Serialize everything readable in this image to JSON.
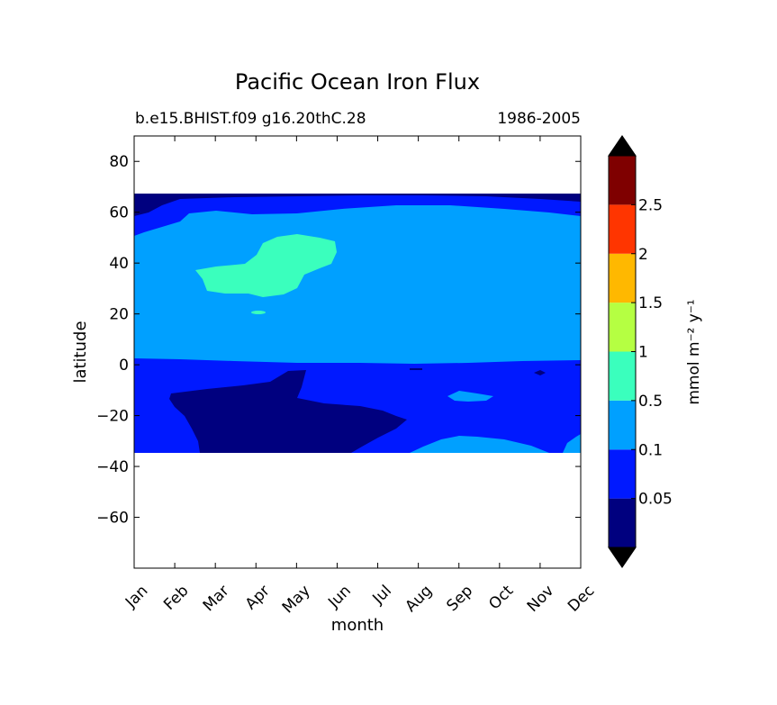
{
  "chart_data": {
    "type": "contour",
    "title": "Pacific Ocean Iron Flux",
    "subtitle_left": "b.e15.BHIST.f09 g16.20thC.28",
    "subtitle_right": "1986-2005",
    "xlabel": "month",
    "ylabel": "latitude",
    "xticks": [
      "Jan",
      "Feb",
      "Mar",
      "Apr",
      "May",
      "Jun",
      "Jul",
      "Aug",
      "Sep",
      "Oct",
      "Nov",
      "Dec"
    ],
    "ylim": [
      -80,
      90
    ],
    "yticks": [
      80,
      60,
      40,
      20,
      0,
      -20,
      -40,
      -60
    ],
    "data_lat_range": [
      -34,
      67
    ],
    "colorbar": {
      "label": "mmol m⁻² y⁻¹",
      "levels": [
        0.05,
        0.1,
        0.5,
        1,
        1.5,
        2,
        2.5
      ],
      "tick_labels": [
        "0.05",
        "0.1",
        "0.5",
        "1",
        "1.5",
        "2",
        "2.5"
      ],
      "colors": [
        "#00007f",
        "#0019ff",
        "#00a0ff",
        "#3affbd",
        "#b5ff42",
        "#ffb800",
        "#ff3500",
        "#7f0000"
      ],
      "extend": "both"
    },
    "regions": [
      {
        "class": "0.1-0.5",
        "description": "dominant band 0-67N"
      },
      {
        "class": "0.5-1",
        "description": "patch 27-51N, Mar-Jun"
      },
      {
        "class": "0.05-0.1",
        "description": "equatorial to southern band, north edge 0-67N fringe"
      },
      {
        "class": "<0.05",
        "description": "southern tropics Feb-Sep; northern edge 62-67N"
      }
    ]
  }
}
